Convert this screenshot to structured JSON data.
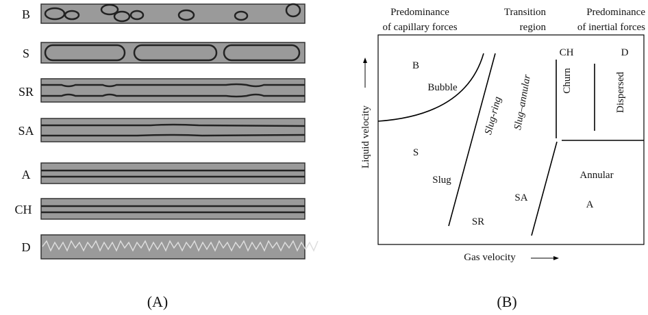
{
  "panel_a": {
    "rows": [
      "B",
      "S",
      "SR",
      "SA",
      "A",
      "CH",
      "D"
    ],
    "caption": "(A)"
  },
  "panel_b": {
    "headers": [
      [
        "Predominance",
        "of capillary forces"
      ],
      [
        "Transition",
        "region"
      ],
      [
        "Predominance",
        "of inertial forces"
      ]
    ],
    "regions": [
      "B",
      "Bubble",
      "S",
      "Slug",
      "SR",
      "Slug-ring",
      "Slug–annular",
      "SA",
      "CH",
      "Churn",
      "D",
      "Dispersed",
      "Annular",
      "A"
    ],
    "y_axis_label": "Liquid velocity",
    "x_axis_label": "Gas velocity",
    "caption": "(B)"
  }
}
